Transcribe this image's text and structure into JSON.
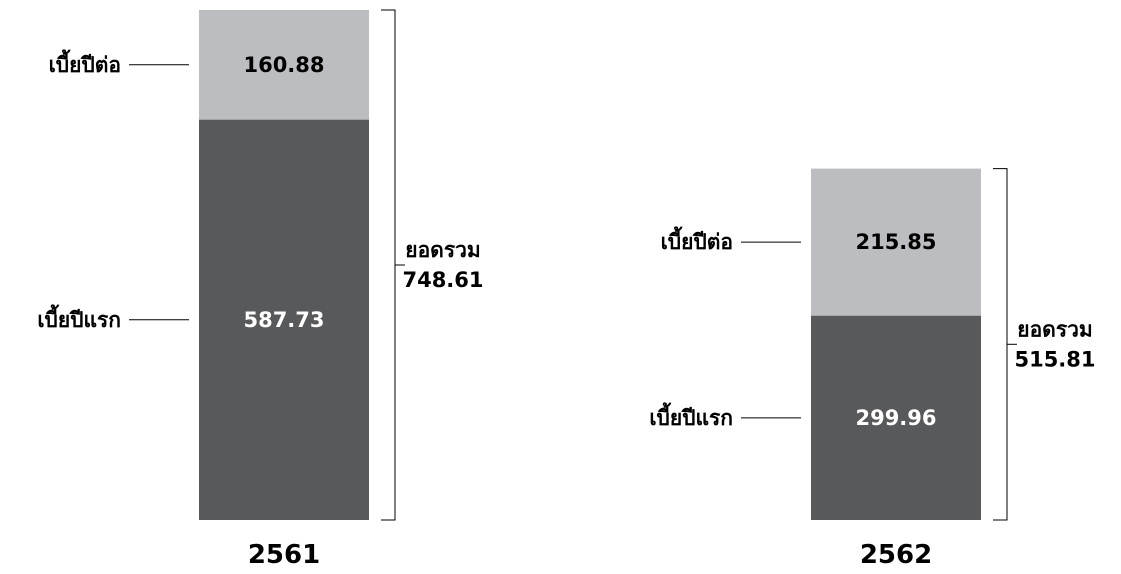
{
  "chart_data": {
    "type": "bar",
    "stacked": true,
    "categories": [
      "2561",
      "2562"
    ],
    "series": [
      {
        "name": "เบี้ยปีแรก",
        "values": [
          587.73,
          299.96
        ],
        "color": "#58595b",
        "value_text_color": "#ffffff"
      },
      {
        "name": "เบี้ยปีต่อ",
        "values": [
          160.88,
          215.85
        ],
        "color": "#bcbdc0",
        "value_text_color": "#000000"
      }
    ],
    "totals": [
      {
        "label": "ยอดรวม",
        "value": "748.61"
      },
      {
        "label": "ยอดรวม",
        "value": "515.81"
      }
    ],
    "grid": false,
    "legend": "inline-left-leaders"
  }
}
